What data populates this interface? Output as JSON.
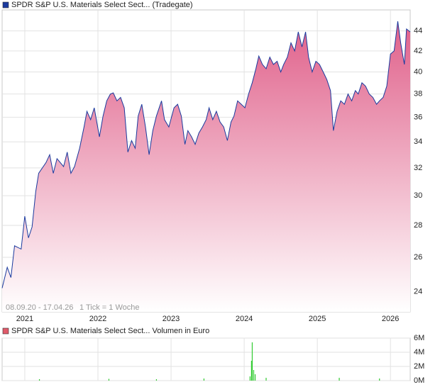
{
  "chart_data": [
    {
      "type": "area",
      "log_scale": true,
      "grid": true,
      "date_range": "08.09.20 - 17.04.26",
      "note": "1 Tick = 1 Woche",
      "series": [
        {
          "name": "SPDR S&P U.S. Materials Select Sect... (Tradegate)",
          "color": "#1a3a9e",
          "fill": "#e0608a",
          "x": [
            2020.69,
            2020.76,
            2020.81,
            2020.86,
            2020.95,
            2021.0,
            2021.05,
            2021.1,
            2021.15,
            2021.19,
            2021.29,
            2021.34,
            2021.39,
            2021.44,
            2021.53,
            2021.58,
            2021.63,
            2021.68,
            2021.75,
            2021.81,
            2021.85,
            2021.9,
            2021.95,
            2022.02,
            2022.07,
            2022.12,
            2022.17,
            2022.21,
            2022.26,
            2022.31,
            2022.36,
            2022.41,
            2022.46,
            2022.51,
            2022.55,
            2022.6,
            2022.65,
            2022.7,
            2022.75,
            2022.8,
            2022.87,
            2022.91,
            2022.97,
            2023.04,
            2023.09,
            2023.14,
            2023.19,
            2023.23,
            2023.28,
            2023.33,
            2023.38,
            2023.43,
            2023.48,
            2023.52,
            2023.57,
            2023.62,
            2023.67,
            2023.72,
            2023.77,
            2023.82,
            2023.86,
            2023.91,
            2023.96,
            2024.01,
            2024.06,
            2024.11,
            2024.16,
            2024.2,
            2024.25,
            2024.3,
            2024.35,
            2024.4,
            2024.45,
            2024.5,
            2024.54,
            2024.59,
            2024.64,
            2024.69,
            2024.74,
            2024.79,
            2024.84,
            2024.88,
            2024.93,
            2024.98,
            2025.03,
            2025.08,
            2025.13,
            2025.18,
            2025.22,
            2025.27,
            2025.32,
            2025.37,
            2025.42,
            2025.47,
            2025.52,
            2025.56,
            2025.61,
            2025.66,
            2025.71,
            2025.76,
            2025.81,
            2025.85,
            2025.9,
            2025.95,
            2026.0,
            2026.05,
            2026.1,
            2026.14,
            2026.19,
            2026.22,
            2026.27
          ],
          "values": [
            24.2,
            25.4,
            24.8,
            26.7,
            26.5,
            28.6,
            27.2,
            27.9,
            30.3,
            31.6,
            32.4,
            33.0,
            31.6,
            32.7,
            32.1,
            33.2,
            31.6,
            32.1,
            33.5,
            35.2,
            36.5,
            35.8,
            36.8,
            34.4,
            36.1,
            37.4,
            38.0,
            38.1,
            37.4,
            37.7,
            36.8,
            33.2,
            34.1,
            33.5,
            36.1,
            37.1,
            35.2,
            33.0,
            34.9,
            36.1,
            37.4,
            35.8,
            35.2,
            36.8,
            37.1,
            36.1,
            33.8,
            34.9,
            34.4,
            33.8,
            34.7,
            35.2,
            35.8,
            36.8,
            35.8,
            36.5,
            35.6,
            35.2,
            34.1,
            35.6,
            36.1,
            37.4,
            37.1,
            36.8,
            38.0,
            39.0,
            40.3,
            41.5,
            40.7,
            40.3,
            41.4,
            40.7,
            41.0,
            40.0,
            40.7,
            41.4,
            42.8,
            42.0,
            43.9,
            42.4,
            43.9,
            41.4,
            40.0,
            41.0,
            40.7,
            40.0,
            39.3,
            38.3,
            34.9,
            36.5,
            37.4,
            37.1,
            38.0,
            37.4,
            38.3,
            38.0,
            39.0,
            38.7,
            38.0,
            37.7,
            37.1,
            37.4,
            37.7,
            38.7,
            41.7,
            42.0,
            45.0,
            42.8,
            40.7,
            44.2,
            43.9
          ]
        }
      ],
      "xlim": [
        2020.69,
        2026.27
      ],
      "xticks": [
        2021,
        2022,
        2023,
        2024,
        2025,
        2026
      ],
      "ylim": [
        22.9,
        46.2
      ],
      "yticks": [
        24,
        26,
        28,
        30,
        32,
        34,
        36,
        38,
        40,
        42,
        44
      ]
    },
    {
      "type": "bar",
      "grid": true,
      "series": [
        {
          "name": "SPDR S&P U.S. Materials Select Sect... Volumen in Euro",
          "color": "#33cc33",
          "legend_color": "#e05a6a",
          "x": [
            2021.2,
            2022.15,
            2022.8,
            2023.45,
            2024.08,
            2024.1,
            2024.11,
            2024.13,
            2024.15,
            2024.3,
            2025.3,
            2025.85
          ],
          "values": [
            200000,
            250000,
            200000,
            300000,
            600000,
            2800000,
            5400000,
            1500000,
            900000,
            400000,
            400000,
            300000
          ]
        }
      ],
      "xlim": [
        2020.69,
        2026.27
      ],
      "xticks": [
        2021,
        2022,
        2023,
        2024,
        2025,
        2026
      ],
      "ylim": [
        0,
        6000000
      ],
      "yticks": [
        {
          "value": 0,
          "label": "0M"
        },
        {
          "value": 2000000,
          "label": "2M"
        },
        {
          "value": 4000000,
          "label": "4M"
        },
        {
          "value": 6000000,
          "label": "6M"
        }
      ]
    }
  ]
}
